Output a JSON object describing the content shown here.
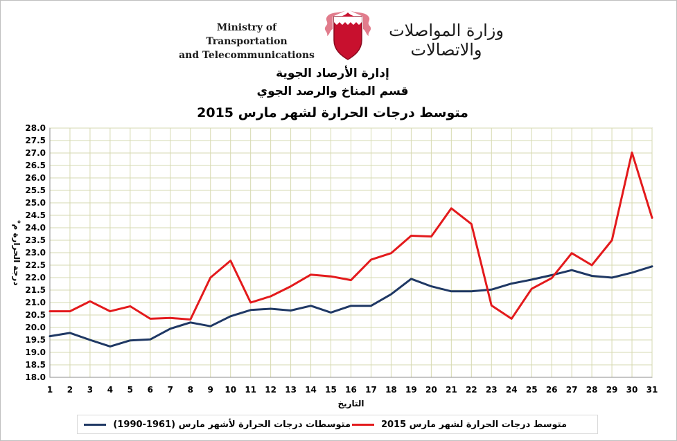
{
  "header": {
    "ministry_en_line1": "Ministry of Transportation",
    "ministry_en_line2": "and Telecommunications",
    "ministry_ar": "وزارة المواصلات والاتصالات",
    "title_line1": "إدارة الأرصاد الجوية",
    "title_line2": "قسم المناخ والرصد الجوي",
    "title_line3": "متوسط درجات الحرارة لشهر مارس 2015"
  },
  "chart_data": {
    "type": "line",
    "xlabel": "التاريخ",
    "ylabel": "درجة الحرارة م°",
    "ylim": [
      18.0,
      28.0
    ],
    "ytick_step": 0.5,
    "x": [
      1,
      2,
      3,
      4,
      5,
      6,
      7,
      8,
      9,
      10,
      11,
      12,
      13,
      14,
      15,
      16,
      17,
      18,
      19,
      20,
      21,
      22,
      23,
      24,
      25,
      26,
      27,
      28,
      29,
      30,
      31
    ],
    "grid": true,
    "legend_position": "bottom",
    "series": [
      {
        "name": "متوسط درجات الحرارة لشهر مارس 2015",
        "color": "#e31a1c",
        "values": [
          20.65,
          20.65,
          21.05,
          20.65,
          20.85,
          20.35,
          20.38,
          20.32,
          22.0,
          22.68,
          21.0,
          21.25,
          21.65,
          22.12,
          22.05,
          21.9,
          22.72,
          22.98,
          23.68,
          23.65,
          24.78,
          24.15,
          20.88,
          20.35,
          21.55,
          21.98,
          22.98,
          22.5,
          23.5,
          27.02,
          24.4
        ]
      },
      {
        "name": "متوسطات درجات الحرارة لأشهر مارس (1961-1990)",
        "color": "#1f3864",
        "values": [
          19.65,
          19.78,
          19.5,
          19.24,
          19.48,
          19.52,
          19.95,
          20.2,
          20.05,
          20.45,
          20.7,
          20.75,
          20.68,
          20.87,
          20.6,
          20.87,
          20.87,
          21.33,
          21.95,
          21.65,
          21.45,
          21.45,
          21.52,
          21.76,
          21.92,
          22.1,
          22.3,
          22.07,
          22.0,
          22.2,
          22.45
        ]
      }
    ]
  }
}
